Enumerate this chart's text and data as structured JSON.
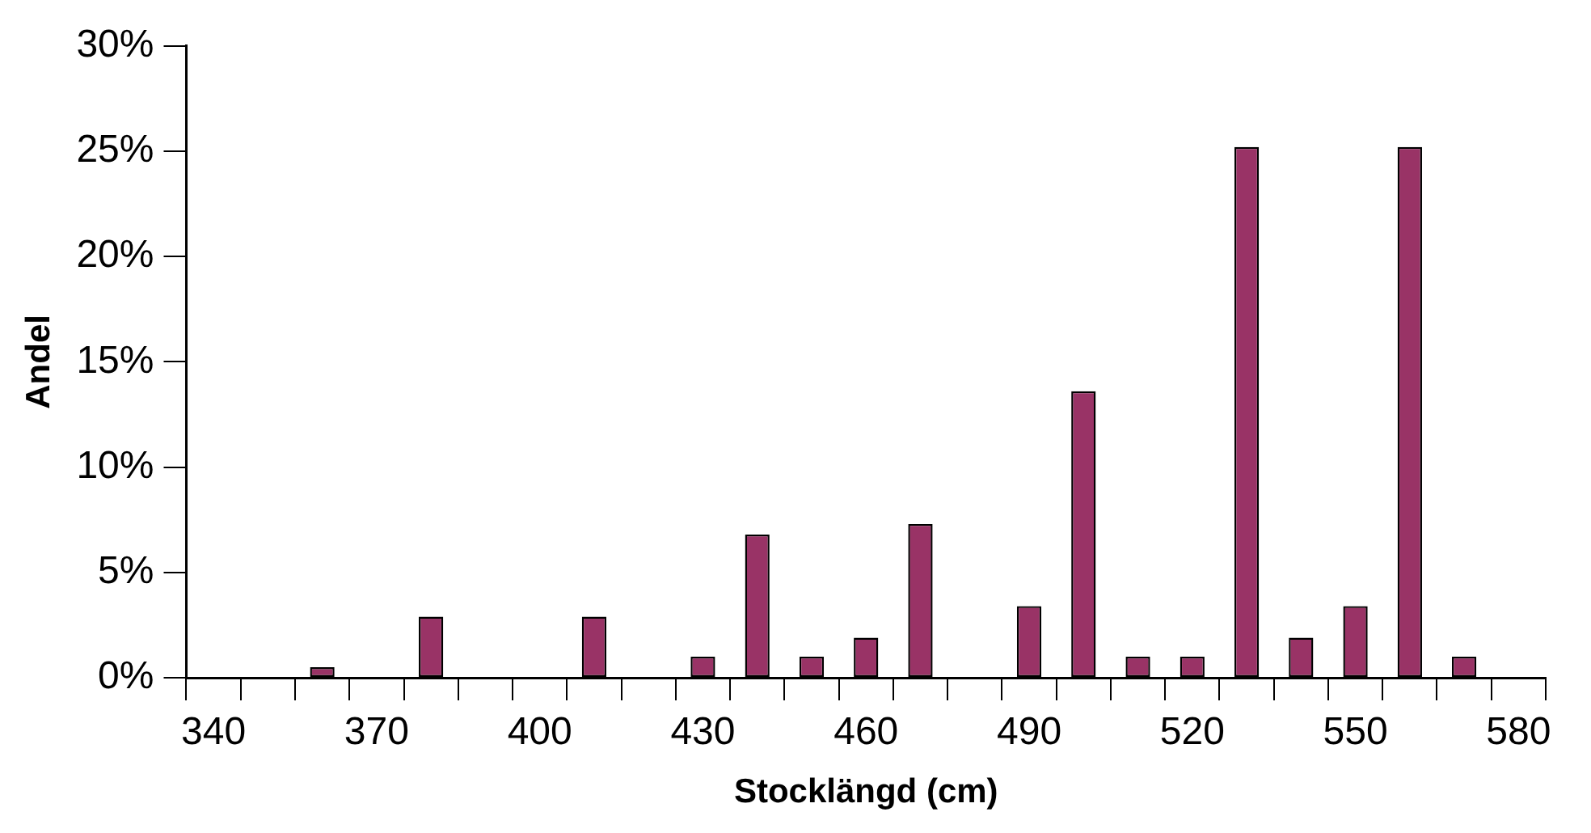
{
  "chart_data": {
    "type": "bar",
    "xlabel": "Stocklängd (cm)",
    "ylabel": "Andel",
    "categories": [
      "340",
      null,
      null,
      "370",
      null,
      null,
      "400",
      null,
      null,
      "430",
      null,
      null,
      "460",
      null,
      null,
      "490",
      null,
      null,
      "520",
      null,
      null,
      "550",
      null,
      null,
      "580"
    ],
    "values": [
      null,
      null,
      0.5,
      null,
      2.9,
      null,
      null,
      2.9,
      null,
      1.0,
      6.8,
      1.0,
      1.9,
      7.3,
      null,
      3.4,
      13.6,
      1.0,
      1.0,
      25.2,
      1.9,
      3.4,
      25.2,
      1.0,
      null
    ],
    "color": "#993366",
    "ylim": [
      0,
      30
    ],
    "yticks": [
      {
        "value": 0,
        "label": "0%"
      },
      {
        "value": 5,
        "label": "5%"
      },
      {
        "value": 10,
        "label": "10%"
      },
      {
        "value": 15,
        "label": "15%"
      },
      {
        "value": 20,
        "label": "20%"
      },
      {
        "value": 25,
        "label": "25%"
      },
      {
        "value": 30,
        "label": "30%"
      }
    ],
    "grid": false,
    "legend": false
  }
}
